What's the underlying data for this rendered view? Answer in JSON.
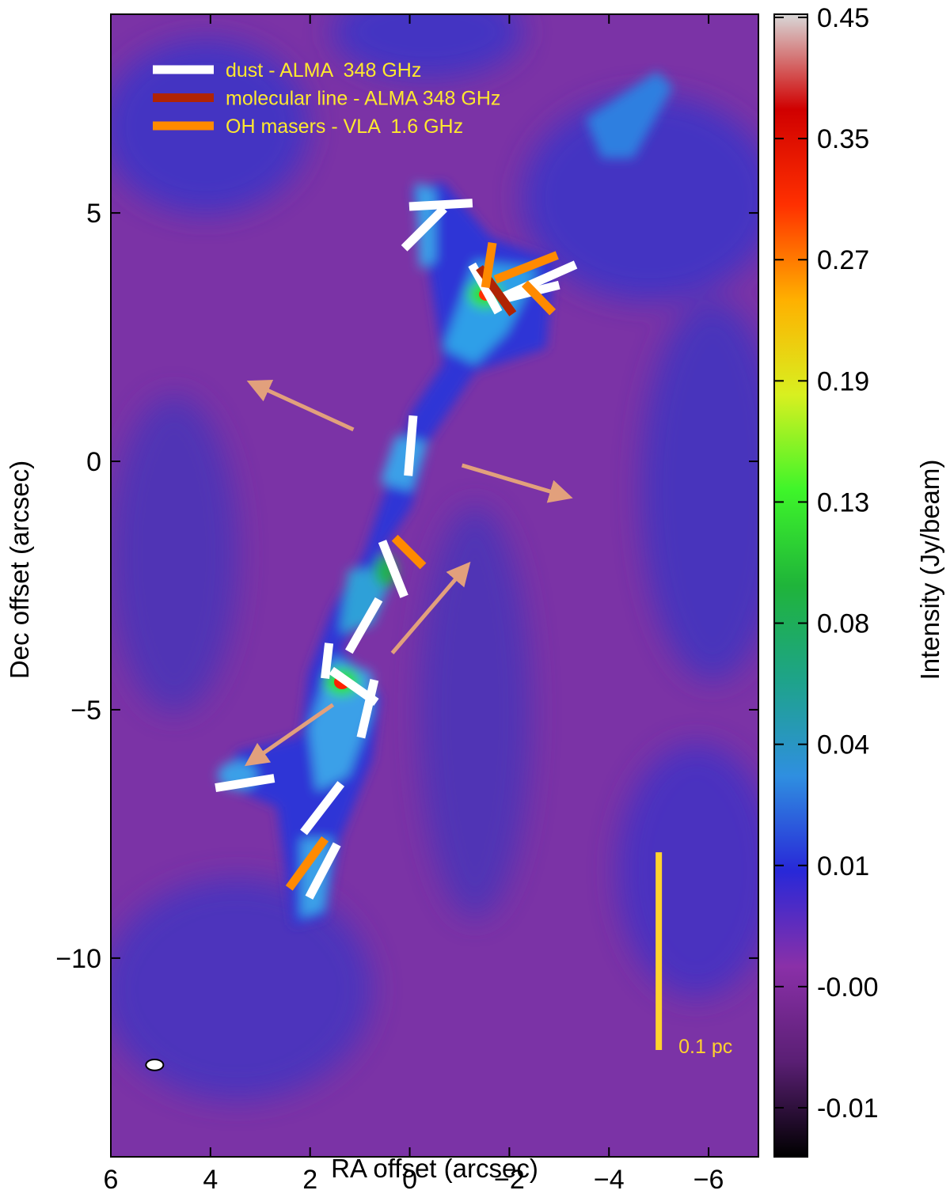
{
  "chart_data": {
    "type": "polarization_map",
    "xlabel": "RA offset (arcsec)",
    "ylabel": "Dec offset (arcsec)",
    "xlim": [
      6,
      -7
    ],
    "ylim": [
      -14,
      9
    ],
    "xticks": [
      6,
      4,
      2,
      0,
      {
        "value": -2,
        "label": "−2"
      },
      {
        "value": -4,
        "label": "−4"
      },
      {
        "value": -6,
        "label": "−6"
      }
    ],
    "yticks": [
      5,
      0,
      {
        "value": -5,
        "label": "−5"
      },
      {
        "value": -10,
        "label": "−10"
      }
    ],
    "colorbar_label": "Intensity (Jy/beam)",
    "colorbar_ticks": [
      -0.01,
      {
        "value": 0,
        "label": "-0.00"
      },
      0.01,
      0.04,
      0.08,
      0.13,
      0.19,
      0.27,
      0.35,
      0.45
    ],
    "colormap": [
      "#000000",
      "#5a1f74",
      "#8a30a8",
      "#2828d8",
      "#2f8fe0",
      "#1ea38a",
      "#1fb43a",
      "#3ef52a",
      "#d8f020",
      "#ffb000",
      "#ff3000",
      "#d00000",
      "#d8d8d8"
    ],
    "legend_color": "#ffe82e",
    "series": [
      {
        "name": "dust - ALMA  348 GHz",
        "color": "#ffffff",
        "lines": [
          {
            "x": [
              0.01,
              -1.26
            ],
            "y": [
              5.13,
              5.2
            ]
          },
          {
            "x": [
              0.11,
              -0.69
            ],
            "y": [
              4.29,
              5.09
            ]
          },
          {
            "x": [
              -1.25,
              -1.78
            ],
            "y": [
              3.96,
              3.0
            ]
          },
          {
            "x": [
              -1.83,
              -3.33
            ],
            "y": [
              3.29,
              3.96
            ]
          },
          {
            "x": [
              -1.96,
              -3.0
            ],
            "y": [
              3.29,
              3.55
            ]
          },
          {
            "x": [
              -0.07,
              0.03
            ],
            "y": [
              0.92,
              -0.29
            ]
          },
          {
            "x": [
              0.55,
              0.11
            ],
            "y": [
              -1.61,
              -2.72
            ]
          },
          {
            "x": [
              0.62,
              1.22
            ],
            "y": [
              -2.78,
              -3.83
            ]
          },
          {
            "x": [
              1.62,
              1.7
            ],
            "y": [
              -3.66,
              -4.37
            ]
          },
          {
            "x": [
              1.57,
              0.67
            ],
            "y": [
              -4.21,
              -4.85
            ]
          },
          {
            "x": [
              0.71,
              0.98
            ],
            "y": [
              -4.4,
              -5.56
            ]
          },
          {
            "x": [
              3.9,
              2.72
            ],
            "y": [
              -6.57,
              -6.38
            ]
          },
          {
            "x": [
              2.13,
              1.38
            ],
            "y": [
              -7.47,
              -6.49
            ]
          },
          {
            "x": [
              2.02,
              1.46
            ],
            "y": [
              -8.78,
              -7.71
            ]
          }
        ]
      },
      {
        "name": "molecular line - ALMA 348 GHz",
        "color": "#b02404",
        "lines": [
          {
            "x": [
              -1.4,
              -2.07
            ],
            "y": [
              3.9,
              2.97
            ]
          }
        ]
      },
      {
        "name": "OH masers - VLA  1.6 GHz",
        "color": "#ff8a00",
        "lines": [
          {
            "x": [
              -1.66,
              -1.52
            ],
            "y": [
              4.4,
              3.5
            ]
          },
          {
            "x": [
              -1.72,
              -2.96
            ],
            "y": [
              3.66,
              4.15
            ]
          },
          {
            "x": [
              -2.31,
              -2.87
            ],
            "y": [
              3.58,
              3.0
            ]
          },
          {
            "x": [
              0.3,
              -0.27
            ],
            "y": [
              -1.54,
              -2.11
            ]
          },
          {
            "x": [
              2.42,
              1.7
            ],
            "y": [
              -8.59,
              -7.6
            ]
          }
        ]
      }
    ],
    "outflows": {
      "color": "#e2a07c",
      "arrows": [
        {
          "x": [
            1.13,
            3.2
          ],
          "y": [
            0.64,
            1.59
          ]
        },
        {
          "x": [
            -1.05,
            -3.2
          ],
          "y": [
            -0.08,
            -0.72
          ]
        },
        {
          "x": [
            0.35,
            -1.17
          ],
          "y": [
            -3.86,
            -2.08
          ]
        },
        {
          "x": [
            1.54,
            3.25
          ],
          "y": [
            -4.9,
            -6.09
          ]
        }
      ]
    },
    "scale_bar": {
      "label": "0.1 pc",
      "color": "#ffd22e",
      "x": -5,
      "y": [
        -7.87,
        -11.85
      ]
    },
    "beam": {
      "x": 5.12,
      "y": -12.15,
      "width": 0.35,
      "height": 0.22
    }
  }
}
